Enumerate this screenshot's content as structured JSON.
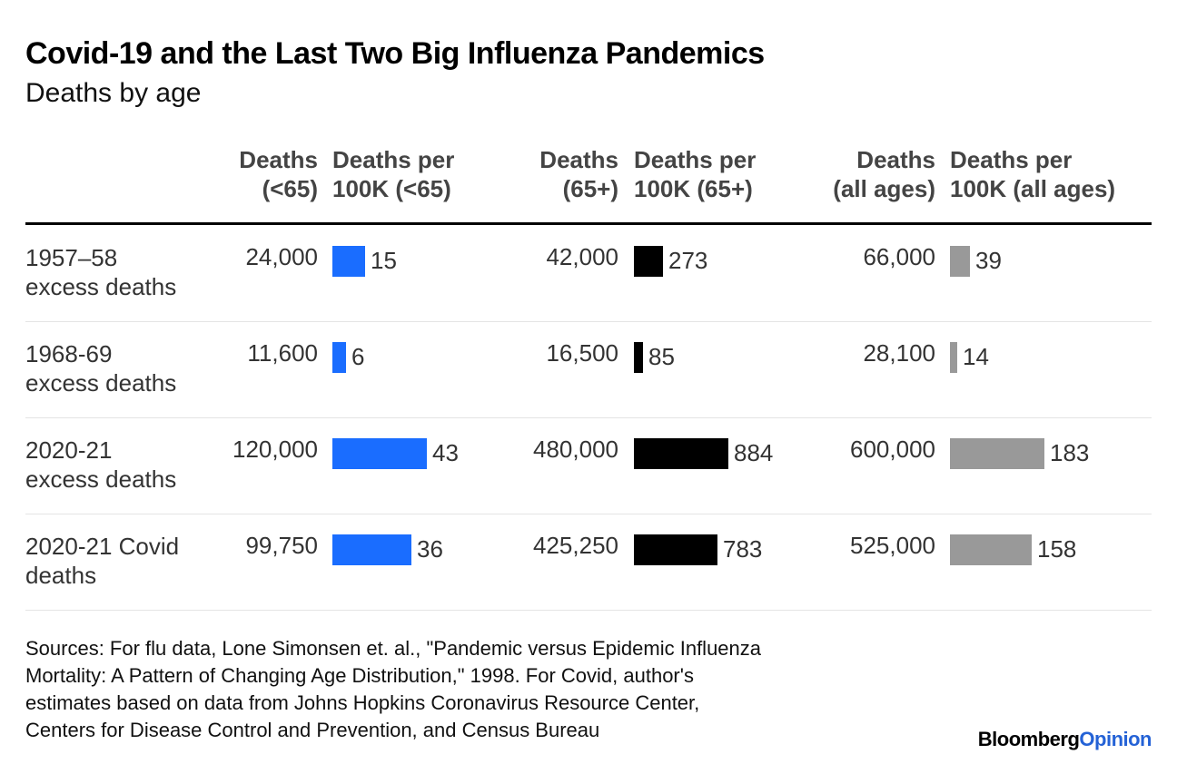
{
  "chart_data": {
    "type": "table",
    "title": "Covid-19 and the Last Two Big Influenza Pandemics",
    "subtitle": "Deaths by age",
    "columns": [
      {
        "id": "deaths_u65",
        "line1": "Deaths",
        "line2": "(<65)"
      },
      {
        "id": "rate_u65",
        "line1": "Deaths per",
        "line2": "100K (<65)"
      },
      {
        "id": "deaths_65",
        "line1": "Deaths",
        "line2": "(65+)"
      },
      {
        "id": "rate_65",
        "line1": "Deaths per",
        "line2": "100K (65+)"
      },
      {
        "id": "deaths_all",
        "line1": "Deaths",
        "line2": "(all ages)"
      },
      {
        "id": "rate_all",
        "line1": "Deaths per",
        "line2": "100K (all ages)"
      }
    ],
    "rows": [
      {
        "line1": "1957–58",
        "line2": "excess deaths",
        "deaths_u65": "24,000",
        "rate_u65": 15,
        "deaths_65": "42,000",
        "rate_65": 273,
        "deaths_all": "66,000",
        "rate_all": 39
      },
      {
        "line1": "1968-69",
        "line2": "excess deaths",
        "deaths_u65": "11,600",
        "rate_u65": 6,
        "deaths_65": "16,500",
        "rate_65": 85,
        "deaths_all": "28,100",
        "rate_all": 14
      },
      {
        "line1": "2020-21",
        "line2": "excess deaths",
        "deaths_u65": "120,000",
        "rate_u65": 43,
        "deaths_65": "480,000",
        "rate_65": 884,
        "deaths_all": "600,000",
        "rate_all": 183
      },
      {
        "line1": "2020-21 Covid",
        "line2": "deaths",
        "deaths_u65": "99,750",
        "rate_u65": 36,
        "deaths_65": "425,250",
        "rate_65": 783,
        "deaths_all": "525,000",
        "rate_all": 158
      }
    ],
    "bar_colors": {
      "rate_u65": "#1a6dff",
      "rate_65": "#000000",
      "rate_all": "#999999"
    }
  },
  "sources": [
    "Sources: For flu data, Lone Simonsen et. al., \"Pandemic versus Epidemic Influenza",
    "Mortality: A Pattern of Changing Age Distribution,\" 1998. For Covid, author's",
    "estimates based on data from Johns Hopkins Coronavirus Resource Center,",
    "Centers for Disease Control and Prevention, and Census Bureau"
  ],
  "logo": {
    "part1": "Bloomberg",
    "part2": "Opinion"
  }
}
